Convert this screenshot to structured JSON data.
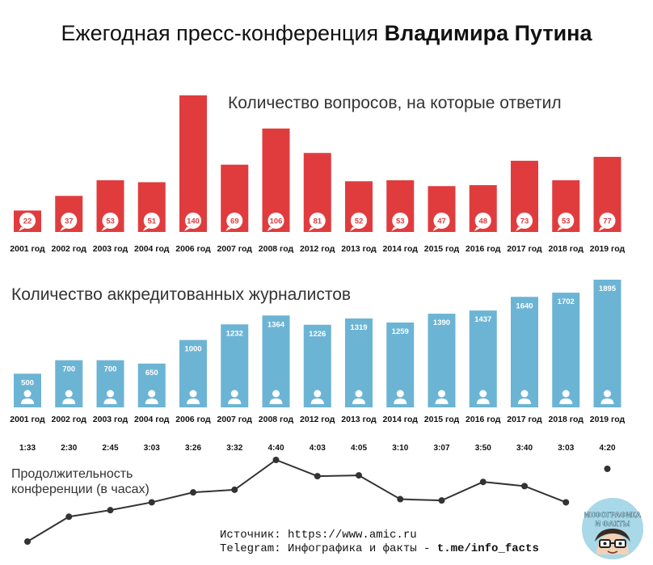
{
  "header": {
    "title_regular": "Ежегодная пресс-конференция ",
    "title_bold": "Владимира Путина"
  },
  "chart_data": [
    {
      "type": "bar",
      "title": "Количество вопросов, на которые ответил",
      "categories": [
        "2001 год",
        "2002 год",
        "2003 год",
        "2004 год",
        "2006 год",
        "2007 год",
        "2008 год",
        "2012 год",
        "2013 год",
        "2014 год",
        "2015 год",
        "2016 год",
        "2017 год",
        "2018 год",
        "2019 год"
      ],
      "values": [
        22,
        37,
        53,
        51,
        140,
        69,
        106,
        81,
        52,
        53,
        47,
        48,
        73,
        53,
        77
      ],
      "color": "#e03c3e"
    },
    {
      "type": "bar",
      "title": "Количество аккредитованных журналистов",
      "categories": [
        "2001 год",
        "2002 год",
        "2003 год",
        "2004 год",
        "2006 год",
        "2007 год",
        "2008 год",
        "2012 год",
        "2013 год",
        "2014 год",
        "2015 год",
        "2016 год",
        "2017 год",
        "2018 год",
        "2019 год"
      ],
      "values": [
        500,
        700,
        700,
        650,
        1000,
        1232,
        1364,
        1226,
        1319,
        1259,
        1390,
        1437,
        1640,
        1702,
        1895
      ],
      "color": "#6cb4d4"
    },
    {
      "type": "line",
      "title": "Продолжительность конференции (в часах)",
      "categories": [
        "2001 год",
        "2002 год",
        "2003 год",
        "2004 год",
        "2006 год",
        "2007 год",
        "2008 год",
        "2012 год",
        "2013 год",
        "2014 год",
        "2015 год",
        "2016 год",
        "2017 год",
        "2018 год",
        "2019 год"
      ],
      "labels": [
        "1:33",
        "2:30",
        "2:45",
        "3:03",
        "3:26",
        "3:32",
        "4:40",
        "4:03",
        "4:05",
        "3:10",
        "3:07",
        "3:50",
        "3:40",
        "3:03",
        "4:20"
      ],
      "values_hours": [
        1.55,
        2.5,
        2.75,
        3.05,
        3.43,
        3.53,
        4.67,
        4.05,
        4.08,
        3.17,
        3.12,
        3.83,
        3.67,
        3.05,
        4.33
      ],
      "color": "#333333"
    }
  ],
  "footer": {
    "source_line": "Источник: https://www.amic.ru",
    "telegram_prefix": "Telegram: Инфографика и факты - ",
    "telegram_handle": "t.me/info_facts"
  },
  "logo": {
    "text_line1": "ИНФОГРАФИКА",
    "text_line2": "И ФАКТЫ",
    "icon": "nerd-face-logo"
  }
}
